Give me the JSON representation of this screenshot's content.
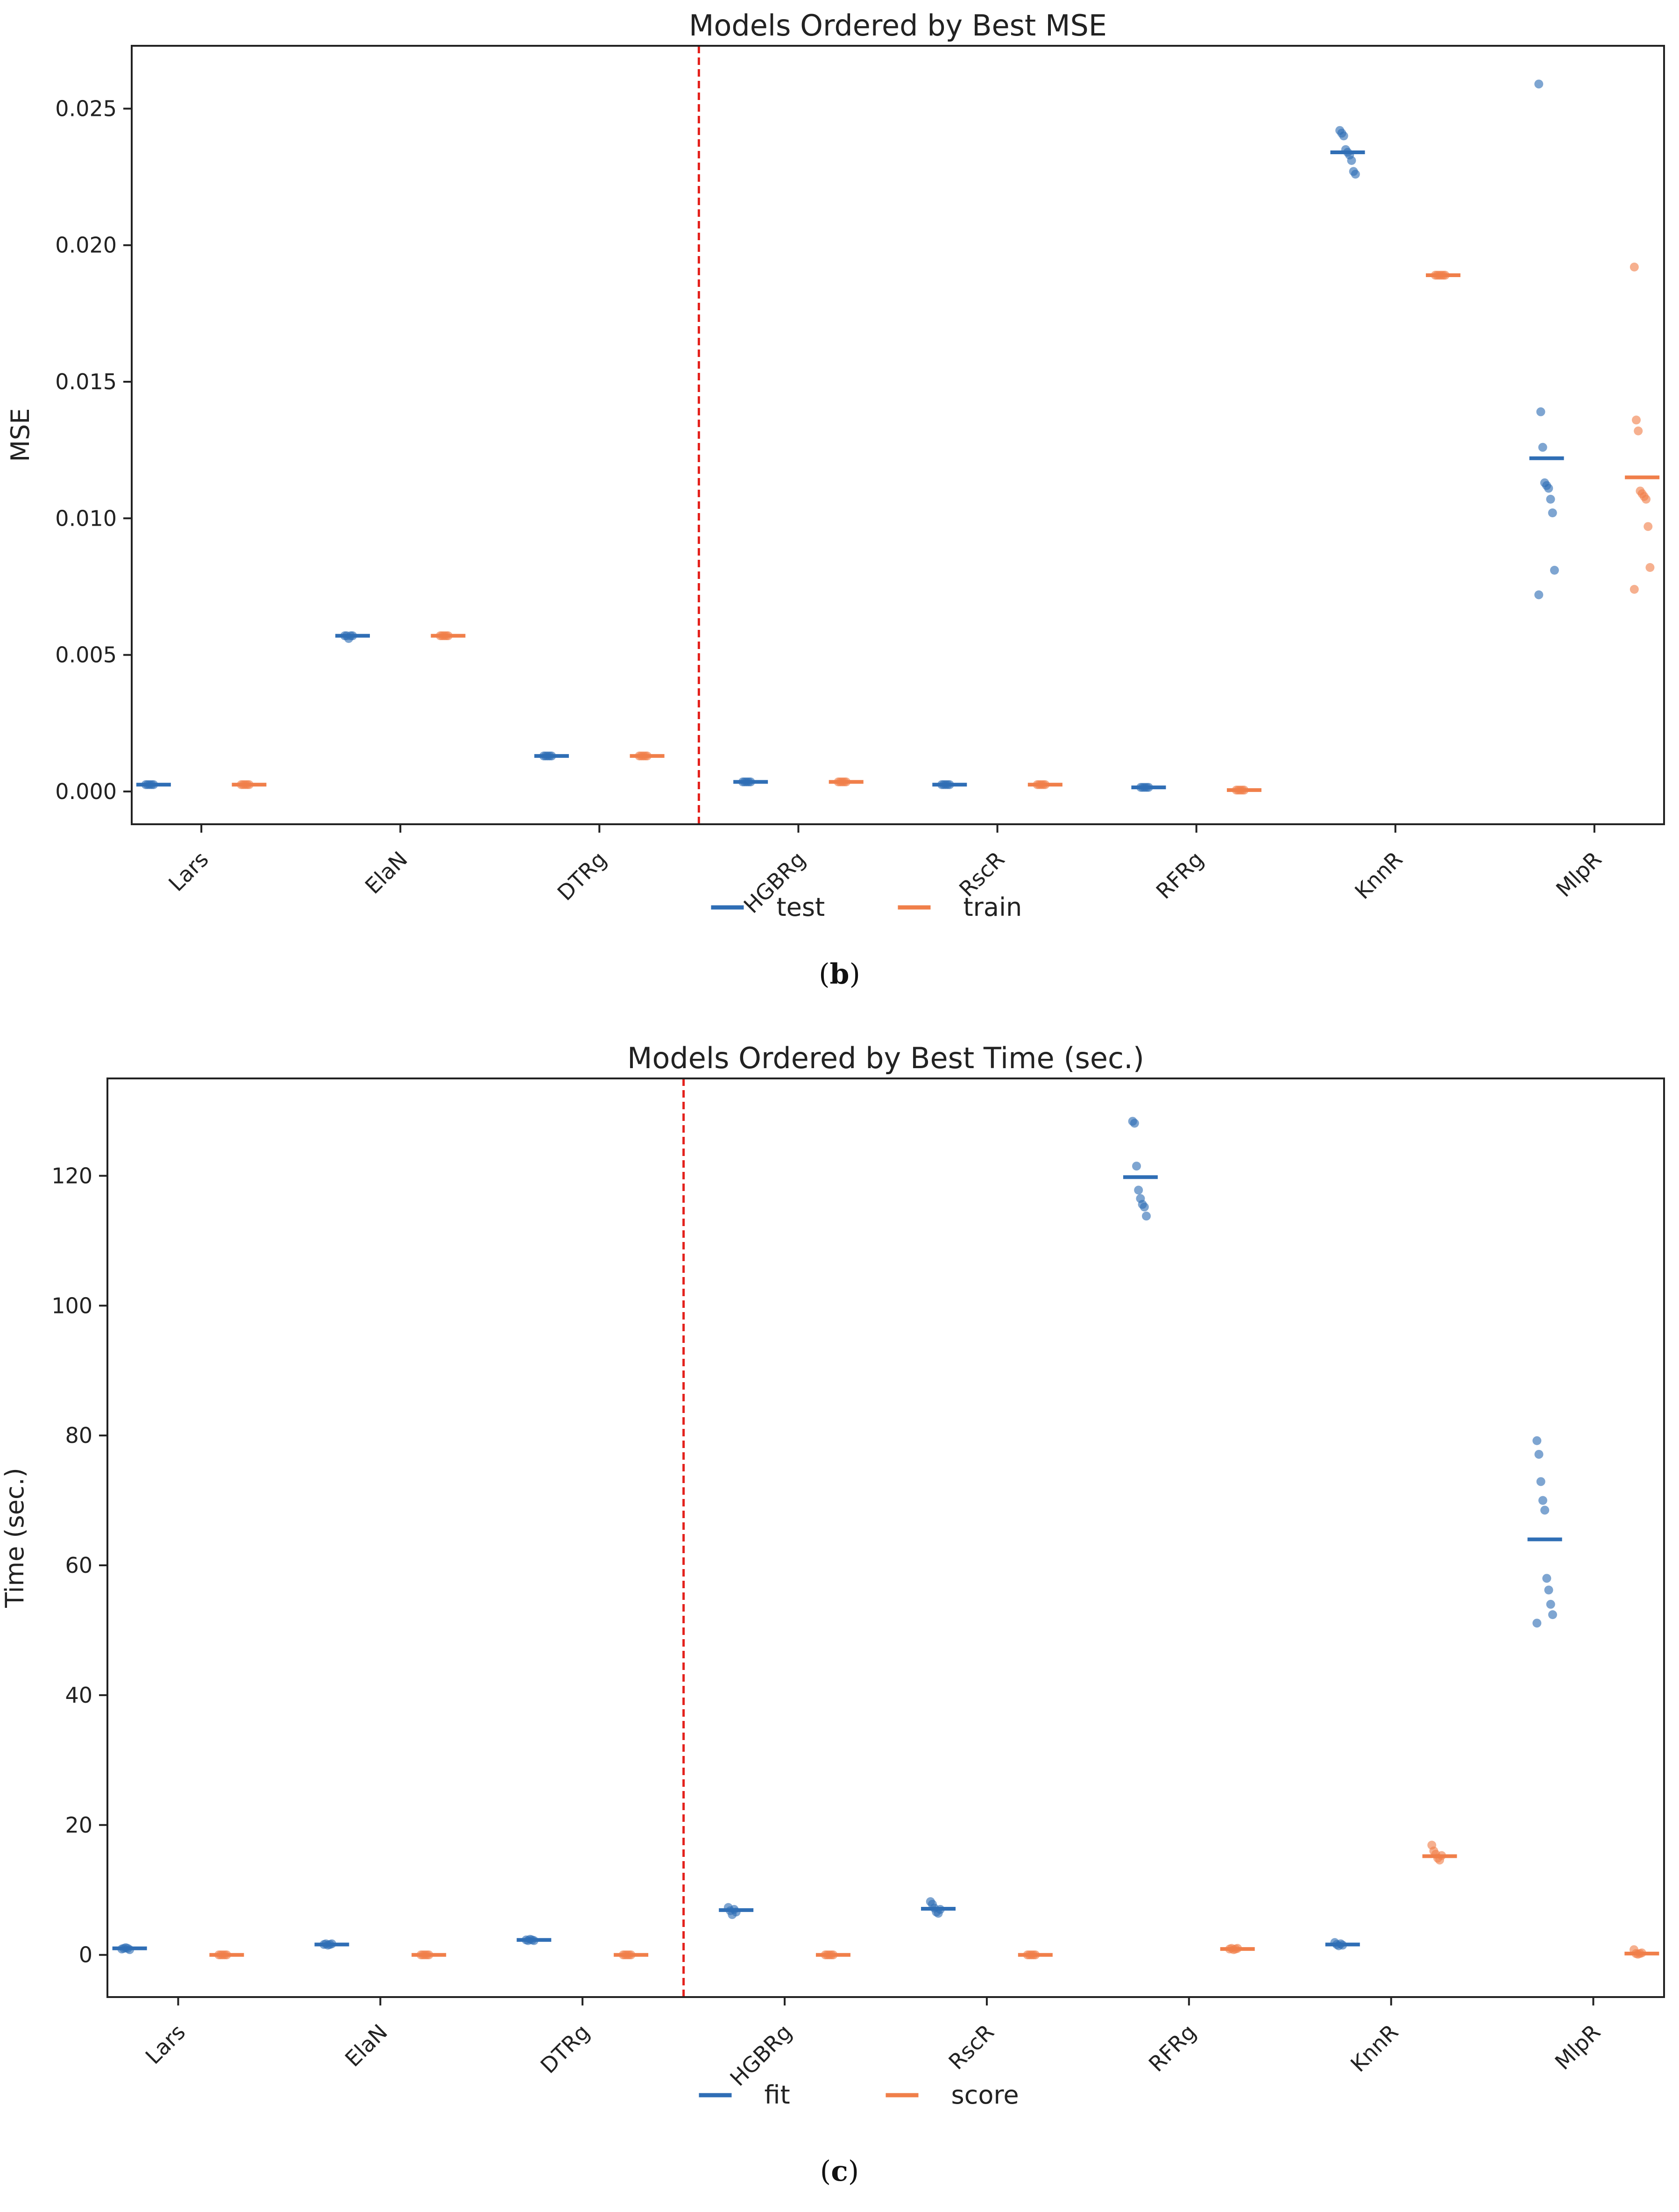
{
  "panels": [
    {
      "label": "b",
      "chart_data": {
        "type": "scatter",
        "title": "Models Ordered by Best MSE",
        "xlabel": "",
        "ylabel": "MSE",
        "categories": [
          "Lars",
          "ElaN",
          "DTRg",
          "HGBRg",
          "RscR",
          "RFRg",
          "KnnR",
          "MlpR"
        ],
        "ylim": [
          -0.0012,
          0.0273
        ],
        "yticks": [
          0.0,
          0.005,
          0.01,
          0.015,
          0.02,
          0.025
        ],
        "ytick_labels": [
          "0.000",
          "0.005",
          "0.010",
          "0.015",
          "0.020",
          "0.025"
        ],
        "divider_after_category": "DTRg",
        "legend_position": "bottom-center",
        "series": [
          {
            "name": "test",
            "color": "#2f6eb5",
            "means": [
              0.00025,
              0.0057,
              0.0013,
              0.00035,
              0.00025,
              0.00015,
              0.0234,
              0.0122
            ],
            "points": [
              [
                0.00025,
                0.00025,
                0.00025,
                0.00025,
                0.00025
              ],
              [
                0.0057,
                0.0057,
                0.0056,
                0.0057,
                0.0057
              ],
              [
                0.0013,
                0.0013,
                0.0013,
                0.0013,
                0.0013
              ],
              [
                0.00035,
                0.00035,
                0.00035,
                0.00035,
                0.00035
              ],
              [
                0.00025,
                0.00025,
                0.00025,
                0.00025,
                0.00025
              ],
              [
                0.00015,
                0.00015,
                0.00015,
                0.00015,
                0.00015
              ],
              [
                0.0242,
                0.0241,
                0.024,
                0.0235,
                0.0234,
                0.0233,
                0.0231,
                0.0227,
                0.0226
              ],
              [
                0.0259,
                0.0139,
                0.0126,
                0.0113,
                0.0112,
                0.0111,
                0.0107,
                0.0102,
                0.0081,
                0.0072
              ]
            ]
          },
          {
            "name": "train",
            "color": "#f07f4a",
            "means": [
              0.00025,
              0.0057,
              0.0013,
              0.00035,
              0.00025,
              5e-05,
              0.0189,
              0.0115
            ],
            "points": [
              [
                0.00025,
                0.00025,
                0.00025,
                0.00025,
                0.00025
              ],
              [
                0.0057,
                0.0057,
                0.0057,
                0.0057,
                0.0057
              ],
              [
                0.0013,
                0.0013,
                0.0013,
                0.0013,
                0.0013
              ],
              [
                0.00035,
                0.00035,
                0.00035,
                0.00035,
                0.00035
              ],
              [
                0.00025,
                0.00025,
                0.00025,
                0.00025,
                0.00025
              ],
              [
                5e-05,
                5e-05,
                5e-05,
                5e-05,
                5e-05
              ],
              [
                0.0189,
                0.0189,
                0.0189,
                0.0189,
                0.0189,
                0.0189
              ],
              [
                0.0192,
                0.0136,
                0.0132,
                0.011,
                0.0109,
                0.0108,
                0.0107,
                0.0097,
                0.0082,
                0.0074
              ]
            ]
          }
        ]
      }
    },
    {
      "label": "c",
      "chart_data": {
        "type": "scatter",
        "title": "Models Ordered by Best Time (sec.)",
        "xlabel": "",
        "ylabel": "Time (sec.)",
        "categories": [
          "Lars",
          "ElaN",
          "DTRg",
          "HGBRg",
          "RscR",
          "RFRg",
          "KnnR",
          "MlpR"
        ],
        "ylim": [
          -6.5,
          135
        ],
        "yticks": [
          0,
          20,
          40,
          60,
          80,
          100,
          120
        ],
        "ytick_labels": [
          "0",
          "20",
          "40",
          "60",
          "80",
          "100",
          "120"
        ],
        "divider_after_category": "DTRg",
        "legend_position": "bottom-center",
        "series": [
          {
            "name": "fit",
            "color": "#2f6eb5",
            "means": [
              1.0,
              1.6,
              2.3,
              6.9,
              7.1,
              119.8,
              1.6,
              64.0
            ],
            "points": [
              [
                0.9,
                1.0,
                1.1,
                1.0,
                0.8
              ],
              [
                1.6,
                1.7,
                1.5,
                1.6,
                1.7
              ],
              [
                2.3,
                2.2,
                2.4,
                2.3,
                2.2
              ],
              [
                7.3,
                6.8,
                6.2,
                7.0,
                6.6
              ],
              [
                8.2,
                7.8,
                7.2,
                6.6,
                6.4,
                7.0
              ],
              [
                128.4,
                128.1,
                121.5,
                117.8,
                116.5,
                115.6,
                115.2,
                113.8
              ],
              [
                1.9,
                1.6,
                1.4,
                1.7,
                1.5
              ],
              [
                79.2,
                77.1,
                72.9,
                70.0,
                68.5,
                58.0,
                56.2,
                54.0,
                52.4,
                51.1
              ]
            ]
          },
          {
            "name": "score",
            "color": "#f07f4a",
            "means": [
              0.0,
              0.0,
              0.0,
              0.0,
              0.0,
              0.9,
              15.2,
              0.2
            ],
            "points": [
              [
                0.0,
                0.0,
                0.0,
                0.0,
                0.0
              ],
              [
                0.0,
                0.0,
                0.0,
                0.0,
                0.0
              ],
              [
                0.0,
                0.0,
                0.0,
                0.0,
                0.0
              ],
              [
                0.0,
                0.0,
                0.0,
                0.0,
                0.0
              ],
              [
                0.0,
                0.0,
                0.0,
                0.0,
                0.0
              ],
              [
                0.9,
                1.0,
                0.8,
                0.9,
                1.0
              ],
              [
                16.9,
                16.0,
                15.5,
                14.9,
                14.6,
                15.3
              ],
              [
                0.8,
                0.2,
                0.1,
                0.2,
                0.3
              ]
            ]
          }
        ]
      }
    }
  ]
}
